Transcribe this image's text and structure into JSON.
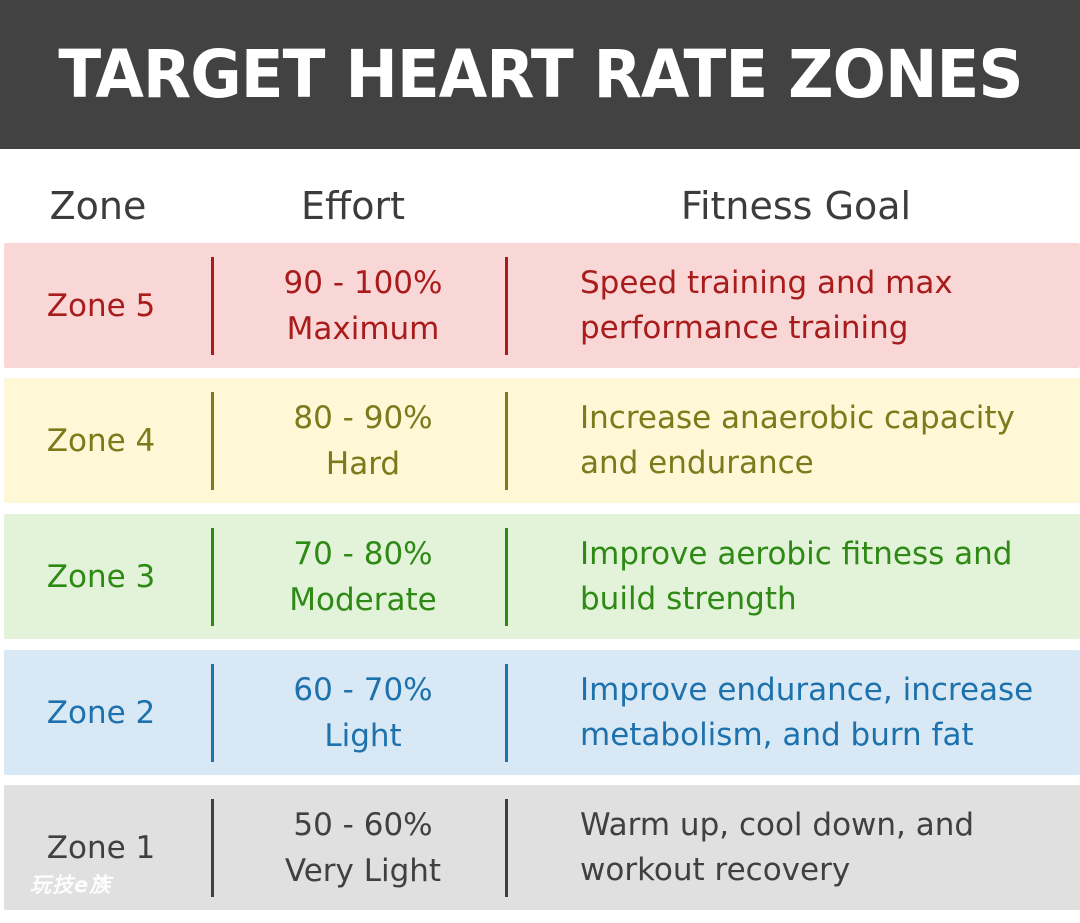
{
  "title": "TARGET HEART RATE ZONES",
  "columns": {
    "zone": "Zone",
    "effort": "Effort",
    "goal": "Fitness Goal"
  },
  "zones": [
    {
      "zone": "Zone 5",
      "percent": "90 - 100%",
      "effort": "Maximum",
      "goal_line1": "Speed training and max",
      "goal_line2": "performance training",
      "bg": "#fad7d7",
      "color": "#a81c1c"
    },
    {
      "zone": "Zone 4",
      "percent": "80 - 90%",
      "effort": "Hard",
      "goal_line1": "Increase anaerobic capacity",
      "goal_line2": "and endurance",
      "bg": "#fef8d6",
      "color": "#7c7a1b"
    },
    {
      "zone": "Zone 3",
      "percent": "70 - 80%",
      "effort": "Moderate",
      "goal_line1": "Improve aerobic fitness and",
      "goal_line2": "build strength",
      "bg": "#e2f3da",
      "color": "#2f8a15"
    },
    {
      "zone": "Zone 2",
      "percent": "60 - 70%",
      "effort": "Light",
      "goal_line1": "Improve endurance, increase",
      "goal_line2": "metabolism, and burn fat",
      "bg": "#d8e8f5",
      "color": "#1d72ad"
    },
    {
      "zone": "Zone 1",
      "percent": "50 - 60%",
      "effort": "Very Light",
      "goal_line1": "Warm up, cool down, and",
      "goal_line2": "workout recovery",
      "bg": "#e0e0e0",
      "color": "#404040"
    }
  ],
  "watermark": "玩技e族"
}
